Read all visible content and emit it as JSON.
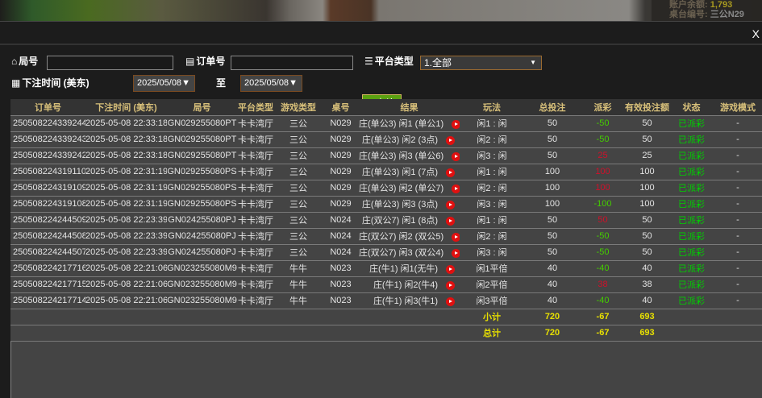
{
  "background": {
    "balance_label": "账户余额:",
    "balance_value": "1,793",
    "table_label": "桌台编号:",
    "table_value": "三公N29"
  },
  "modal": {
    "close_label": "X"
  },
  "filters": {
    "round_label": "局号",
    "round_value": "",
    "order_label": "订单号",
    "order_value": "",
    "platform_label": "平台类型",
    "platform_value": "1.全部",
    "time_label": "下注时间 (美东)",
    "date_from": "2025/05/08",
    "to_label": "至",
    "date_to": "2025/05/08",
    "query_label": "查询"
  },
  "table": {
    "headers": [
      "订单号",
      "下注时间 (美东)",
      "局号",
      "平台类型",
      "游戏类型",
      "桌号",
      "结果",
      "玩法",
      "总投注",
      "派彩",
      "有效投注额",
      "状态",
      "游戏模式"
    ],
    "rows": [
      [
        "250508224339244",
        "2025-05-08 22:33:18",
        "GN029255080PT",
        "卡卡湾厅",
        "三公",
        "N029",
        "庄(单公3) 闲1 (单公1)",
        "闲1 : 闲",
        "50",
        "-50",
        "50",
        "已派彩",
        "-"
      ],
      [
        "250508224339243",
        "2025-05-08 22:33:18",
        "GN029255080PT",
        "卡卡湾厅",
        "三公",
        "N029",
        "庄(单公3) 闲2 (3点)",
        "闲2 : 闲",
        "50",
        "-50",
        "50",
        "已派彩",
        "-"
      ],
      [
        "250508224339242",
        "2025-05-08 22:33:18",
        "GN029255080PT",
        "卡卡湾厅",
        "三公",
        "N029",
        "庄(单公3) 闲3 (单公6)",
        "闲3 : 闲",
        "50",
        "25",
        "25",
        "已派彩",
        "-"
      ],
      [
        "250508224319110",
        "2025-05-08 22:31:19",
        "GN029255080PS",
        "卡卡湾厅",
        "三公",
        "N029",
        "庄(单公3) 闲1 (7点)",
        "闲1 : 闲",
        "100",
        "100",
        "100",
        "已派彩",
        "-"
      ],
      [
        "250508224319109",
        "2025-05-08 22:31:19",
        "GN029255080PS",
        "卡卡湾厅",
        "三公",
        "N029",
        "庄(单公3) 闲2 (单公7)",
        "闲2 : 闲",
        "100",
        "100",
        "100",
        "已派彩",
        "-"
      ],
      [
        "250508224319108",
        "2025-05-08 22:31:19",
        "GN029255080PS",
        "卡卡湾厅",
        "三公",
        "N029",
        "庄(单公3) 闲3 (3点)",
        "闲3 : 闲",
        "100",
        "-100",
        "100",
        "已派彩",
        "-"
      ],
      [
        "250508224244509",
        "2025-05-08 22:23:39",
        "GN024255080PJ",
        "卡卡湾厅",
        "三公",
        "N024",
        "庄(双公7) 闲1 (8点)",
        "闲1 : 闲",
        "50",
        "50",
        "50",
        "已派彩",
        "-"
      ],
      [
        "250508224244508",
        "2025-05-08 22:23:39",
        "GN024255080PJ",
        "卡卡湾厅",
        "三公",
        "N024",
        "庄(双公7) 闲2 (双公5)",
        "闲2 : 闲",
        "50",
        "-50",
        "50",
        "已派彩",
        "-"
      ],
      [
        "250508224244507",
        "2025-05-08 22:23:39",
        "GN024255080PJ",
        "卡卡湾厅",
        "三公",
        "N024",
        "庄(双公7) 闲3 (双公4)",
        "闲3 : 闲",
        "50",
        "-50",
        "50",
        "已派彩",
        "-"
      ],
      [
        "250508224217716",
        "2025-05-08 22:21:06",
        "GN023255080M9",
        "卡卡湾厅",
        "牛牛",
        "N023",
        "庄(牛1) 闲1(无牛)",
        "闲1平倍",
        "40",
        "-40",
        "40",
        "已派彩",
        "-"
      ],
      [
        "250508224217715",
        "2025-05-08 22:21:06",
        "GN023255080M9",
        "卡卡湾厅",
        "牛牛",
        "N023",
        "庄(牛1) 闲2(牛4)",
        "闲2平倍",
        "40",
        "38",
        "38",
        "已派彩",
        "-"
      ],
      [
        "250508224217714",
        "2025-05-08 22:21:06",
        "GN023255080M9",
        "卡卡湾厅",
        "牛牛",
        "N023",
        "庄(牛1) 闲3(牛1)",
        "闲3平倍",
        "40",
        "-40",
        "40",
        "已派彩",
        "-"
      ]
    ],
    "subtotal": {
      "label": "小计",
      "bet": "720",
      "payout": "-67",
      "valid": "693"
    },
    "total": {
      "label": "总计",
      "bet": "720",
      "payout": "-67",
      "valid": "693"
    }
  },
  "colors": {
    "header_text": "#d8c07a",
    "payout_negative": "#44cc00",
    "payout_positive": "#d0102a",
    "status": "#00d000",
    "totals": "#e8e000",
    "query_button": "#5aa010"
  }
}
